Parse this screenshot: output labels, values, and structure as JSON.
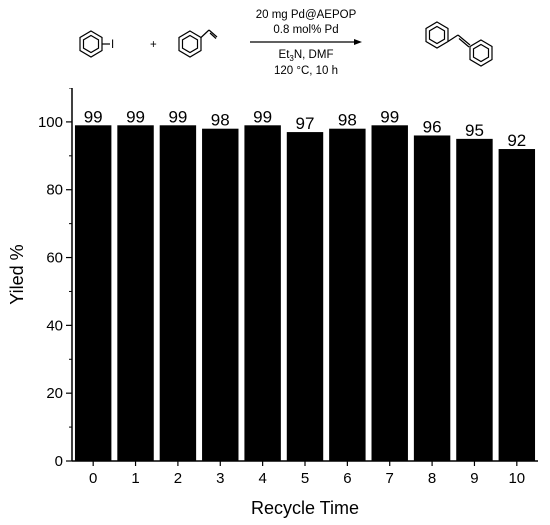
{
  "scheme": {
    "conditions_top": [
      "20 mg Pd@AEPOP",
      "0.8 mol% Pd"
    ],
    "conditions_bottom_base": "Et",
    "conditions_bottom_sub": "3",
    "conditions_bottom_rest": "N, DMF",
    "conditions_bottom_temp": "120 °C, 10 h",
    "plus": "+"
  },
  "chart_data": {
    "type": "bar",
    "categories": [
      "0",
      "1",
      "2",
      "3",
      "4",
      "5",
      "6",
      "7",
      "8",
      "9",
      "10"
    ],
    "values": [
      99,
      99,
      99,
      98,
      99,
      97,
      98,
      99,
      96,
      95,
      92
    ],
    "data_labels": [
      "99",
      "99",
      "99",
      "98",
      "99",
      "97",
      "98",
      "99",
      "96",
      "95",
      "92"
    ],
    "xlabel": "Recycle Time",
    "ylabel": "Yiled %",
    "ylim": [
      0,
      110
    ],
    "yticks": [
      0,
      20,
      40,
      60,
      80,
      100
    ],
    "ytick_labels": [
      "0",
      "20",
      "40",
      "60",
      "80",
      "100"
    ],
    "grid": false,
    "bar_color": "#000000"
  }
}
